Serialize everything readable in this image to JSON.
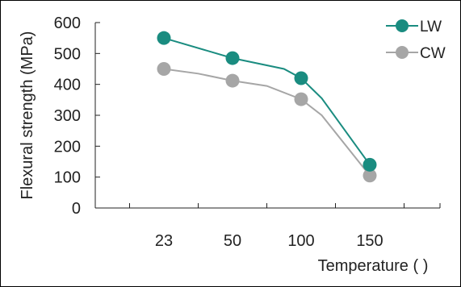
{
  "chart_data": {
    "type": "line",
    "categories": [
      "23",
      "50",
      "100",
      "150"
    ],
    "xlabel": "Temperature (   )",
    "ylabel": "Flexural strength (MPa)",
    "ylim": [
      0,
      600
    ],
    "yticks": [
      "0",
      "100",
      "200",
      "300",
      "400",
      "500",
      "600"
    ],
    "legend_position": "top-right",
    "series": [
      {
        "name": "LW",
        "color": "#1a8c80",
        "values": [
          550,
          485,
          420,
          140
        ],
        "curve": [
          {
            "x": 0,
            "y": 550
          },
          {
            "x": 1,
            "y": 485
          },
          {
            "x": 1.75,
            "y": 450
          },
          {
            "x": 2,
            "y": 420
          },
          {
            "x": 2.3,
            "y": 355
          },
          {
            "x": 3,
            "y": 140
          }
        ]
      },
      {
        "name": "CW",
        "color": "#a6a6a6",
        "values": [
          450,
          412,
          352,
          105
        ],
        "curve": [
          {
            "x": 0,
            "y": 450
          },
          {
            "x": 0.5,
            "y": 435
          },
          {
            "x": 1,
            "y": 412
          },
          {
            "x": 1.5,
            "y": 395
          },
          {
            "x": 2,
            "y": 352
          },
          {
            "x": 2.3,
            "y": 300
          },
          {
            "x": 3,
            "y": 105
          }
        ]
      }
    ]
  }
}
